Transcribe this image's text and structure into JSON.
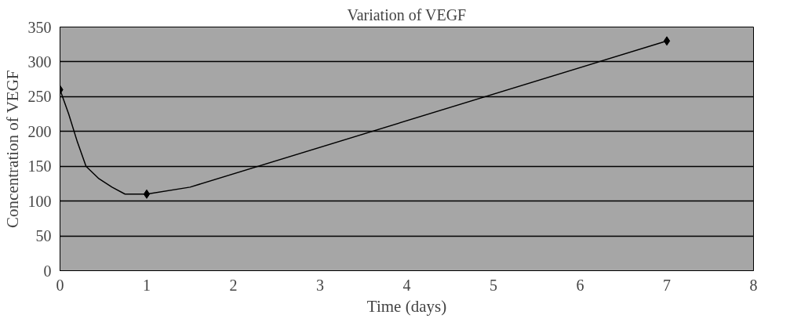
{
  "chart_data": {
    "type": "line",
    "title": "Variation of VEGF",
    "xlabel": "Time (days)",
    "ylabel": "Concentration of VEGF",
    "series": [
      {
        "color": "#000000",
        "marker": "none",
        "x": [
          0,
          0.1,
          0.2,
          0.3,
          0.45,
          0.6,
          0.75,
          1,
          1.5,
          7
        ],
        "values": [
          260,
          225,
          185,
          150,
          132,
          120,
          110,
          110,
          120,
          330
        ]
      },
      {
        "type": "scatter",
        "color": "#000000",
        "marker": "diamond",
        "x": [
          0,
          1,
          7
        ],
        "values": [
          260,
          110,
          330
        ]
      }
    ],
    "xlim": [
      0,
      8
    ],
    "xticks": [
      0,
      1,
      2,
      3,
      4,
      5,
      6,
      7,
      8
    ],
    "ylim": [
      0,
      350
    ],
    "yticks": [
      0,
      50,
      100,
      150,
      200,
      250,
      300,
      350
    ],
    "grid": "y",
    "line_style": "solid"
  }
}
